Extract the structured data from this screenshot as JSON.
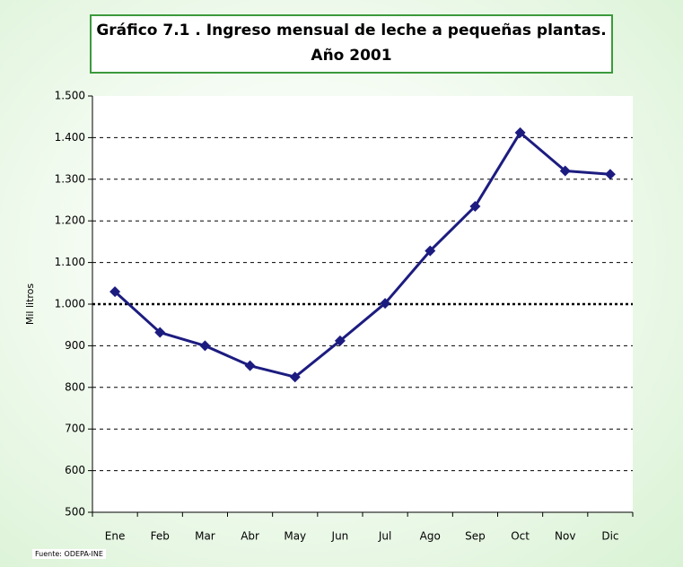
{
  "chart_data": {
    "type": "line",
    "title": "Gráfico 7.1 . Ingreso mensual de leche a pequeñas plantas. Año 2001",
    "y_label": "Mil litros",
    "source": "Fuente: ODEPA-INE",
    "categories": [
      "Ene",
      "Feb",
      "Mar",
      "Abr",
      "May",
      "Jun",
      "Jul",
      "Ago",
      "Sep",
      "Oct",
      "Nov",
      "Dic"
    ],
    "series": [
      {
        "name": "Ingreso mensual",
        "color": "#1c1c80",
        "values": [
          1030,
          932,
          900,
          852,
          825,
          912,
          1002,
          1128,
          1235,
          1412,
          1320,
          1312
        ]
      }
    ],
    "ylim": [
      500,
      1500
    ],
    "yticks": [
      500,
      600,
      700,
      800,
      900,
      {
        "value": 1000,
        "label": "1.000"
      },
      {
        "value": 1100,
        "label": "1.100"
      },
      {
        "value": 1200,
        "label": "1.200"
      },
      {
        "value": 1300,
        "label": "1.300"
      },
      {
        "value": 1400,
        "label": "1.400"
      },
      {
        "value": 1500,
        "label": "1.500"
      }
    ],
    "grid": true
  }
}
